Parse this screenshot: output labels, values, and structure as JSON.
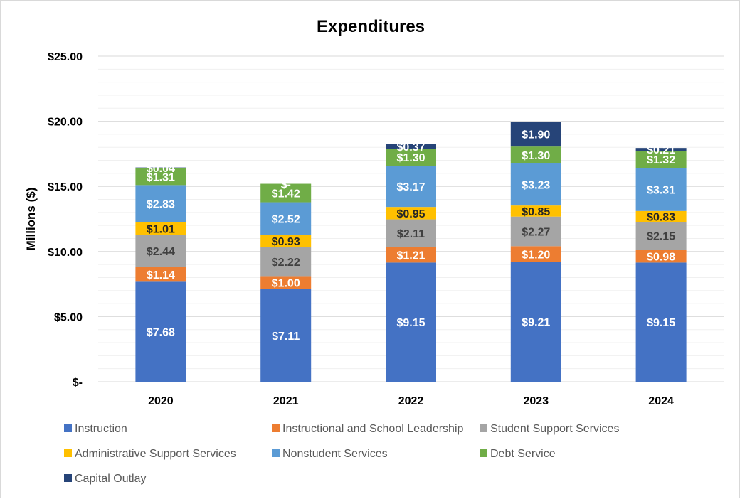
{
  "chart_data": {
    "type": "bar",
    "stacked": true,
    "title": "Expenditures",
    "ylabel": "Millions ($)",
    "xlabel": "",
    "ylim": [
      0,
      25
    ],
    "yticks": [
      0,
      5,
      10,
      15,
      20,
      25
    ],
    "ytick_labels": [
      "$-",
      "$5.00",
      "$10.00",
      "$15.00",
      "$20.00",
      "$25.00"
    ],
    "grid": true,
    "legend_position": "bottom",
    "categories": [
      "2020",
      "2021",
      "2022",
      "2023",
      "2024"
    ],
    "series": [
      {
        "name": "Instruction",
        "color": "#4472c4",
        "label_color": "#ffffff",
        "values": [
          7.68,
          7.11,
          9.15,
          9.21,
          9.15
        ],
        "labels": [
          "$7.68",
          "$7.11",
          "$9.15",
          "$9.21",
          "$9.15"
        ]
      },
      {
        "name": "Instructional and School Leadership",
        "color": "#ed7d31",
        "label_color": "#ffffff",
        "values": [
          1.14,
          1.0,
          1.21,
          1.2,
          0.98
        ],
        "labels": [
          "$1.14",
          "$1.00",
          "$1.21",
          "$1.20",
          "$0.98"
        ]
      },
      {
        "name": "Student Support Services",
        "color": "#a5a5a5",
        "label_color": "#404040",
        "values": [
          2.44,
          2.22,
          2.11,
          2.27,
          2.15
        ],
        "labels": [
          "$2.44",
          "$2.22",
          "$2.11",
          "$2.27",
          "$2.15"
        ]
      },
      {
        "name": "Administrative Support Services",
        "color": "#ffc000",
        "label_color": "#262626",
        "values": [
          1.01,
          0.93,
          0.95,
          0.85,
          0.83
        ],
        "labels": [
          "$1.01",
          "$0.93",
          "$0.95",
          "$0.85",
          "$0.83"
        ]
      },
      {
        "name": "Nonstudent Services",
        "color": "#5b9bd5",
        "label_color": "#ffffff",
        "values": [
          2.83,
          2.52,
          3.17,
          3.23,
          3.31
        ],
        "labels": [
          "$2.83",
          "$2.52",
          "$3.17",
          "$3.23",
          "$3.31"
        ]
      },
      {
        "name": "Debt Service",
        "color": "#70ad47",
        "label_color": "#ffffff",
        "values": [
          1.31,
          1.42,
          1.3,
          1.3,
          1.32
        ],
        "labels": [
          "$1.31",
          "$1.42",
          "$1.30",
          "$1.30",
          "$1.32"
        ]
      },
      {
        "name": "Capital Outlay",
        "color": "#264478",
        "label_color": "#ffffff",
        "values": [
          0.04,
          0,
          0.37,
          1.9,
          0.21
        ],
        "labels": [
          "$0.04",
          "$-",
          "$0.37",
          "$1.90",
          "$0.21"
        ]
      }
    ]
  }
}
